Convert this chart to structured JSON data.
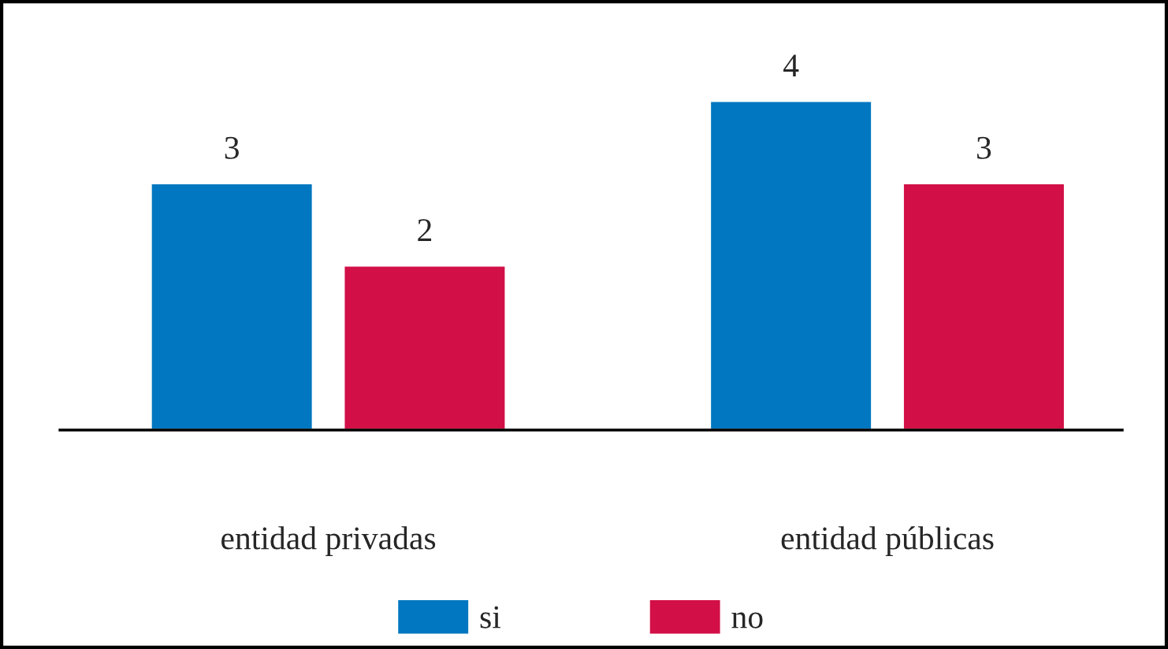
{
  "chart_data": {
    "type": "bar",
    "categories": [
      "entidad privadas",
      "entidad públicas"
    ],
    "series": [
      {
        "name": "si",
        "color": "#0077c0",
        "values": [
          3,
          4
        ]
      },
      {
        "name": "no",
        "color": "#d20f46",
        "values": [
          2,
          3
        ]
      }
    ],
    "data_labels": true,
    "legend": "bottom",
    "grid": false
  }
}
